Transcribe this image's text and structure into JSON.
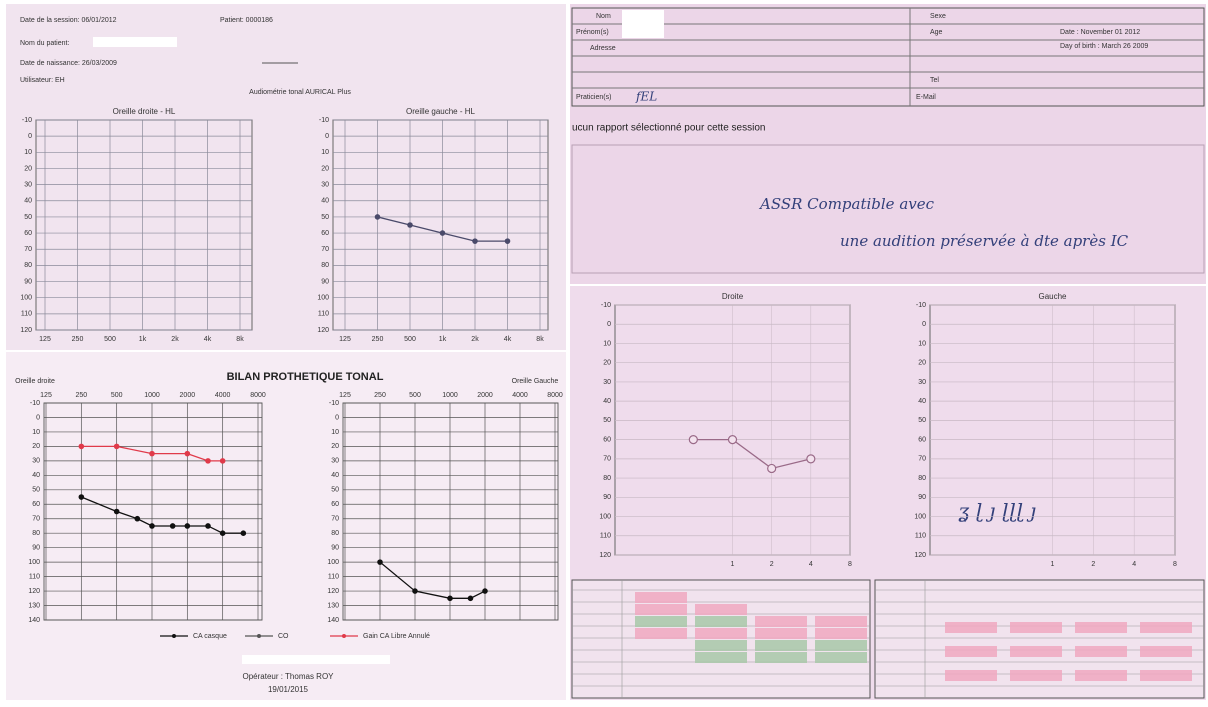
{
  "session_sheet": {
    "session_date": "Date de la session: 06/01/2012",
    "patient_id": "Patient: 0000186",
    "patient_name_label": "Nom du patient:",
    "birth_date": "Date de naissance: 26/03/2009",
    "user": "Utilisateur: EH",
    "title": "Audiométrie tonal AURICAL Plus",
    "charts": [
      {
        "title": "Oreille droite - HL",
        "ylim": [
          -10,
          120
        ],
        "yticks": [
          -10,
          0,
          10,
          20,
          30,
          40,
          50,
          60,
          70,
          80,
          90,
          100,
          110,
          120
        ],
        "xlim": [
          125,
          8000
        ],
        "xticks": [
          125,
          250,
          500,
          {
            "value": 1000,
            "label": "1k"
          },
          {
            "value": 2000,
            "label": "2k"
          },
          {
            "value": 4000,
            "label": "4k"
          },
          {
            "value": 8000,
            "label": "8k"
          }
        ]
      },
      {
        "title": "Oreille gauche - HL",
        "ylim": [
          -10,
          120
        ],
        "yticks": [
          -10,
          0,
          10,
          20,
          30,
          40,
          50,
          60,
          70,
          80,
          90,
          100,
          110,
          120
        ],
        "xlim": [
          125,
          8000
        ],
        "xticks": [
          125,
          250,
          500,
          {
            "value": 1000,
            "label": "1k"
          },
          {
            "value": 2000,
            "label": "2k"
          },
          {
            "value": 4000,
            "label": "4k"
          },
          {
            "value": 8000,
            "label": "8k"
          }
        ],
        "series": [
          {
            "color": "#4a4a6a",
            "x": [
              250,
              500,
              1000,
              2000,
              4000
            ],
            "values": [
              50,
              55,
              60,
              65,
              65
            ]
          }
        ]
      }
    ]
  },
  "bilan": {
    "title": "BILAN PROTHETIQUE TONAL",
    "right_ear_label": "Oreille droite",
    "left_ear_label": "Oreille Gauche",
    "charts": [
      {
        "ylim": [
          -10,
          140
        ],
        "yticks": [
          -10,
          0,
          10,
          20,
          30,
          40,
          50,
          60,
          70,
          80,
          90,
          100,
          110,
          120,
          130,
          140
        ],
        "xlim": [
          125,
          8000
        ],
        "xticks": [
          125,
          250,
          500,
          1000,
          2000,
          4000,
          8000
        ],
        "series": [
          {
            "color": "#e03a4a",
            "x": [
              250,
              500,
              1000,
              2000,
              3000,
              4000
            ],
            "values": [
              20,
              20,
              25,
              25,
              30,
              30
            ]
          },
          {
            "color": "#111111",
            "x": [
              250,
              500,
              750,
              1000,
              1500,
              2000,
              3000,
              4000,
              6000
            ],
            "values": [
              55,
              65,
              70,
              75,
              75,
              75,
              75,
              80,
              80
            ]
          }
        ]
      },
      {
        "ylim": [
          -10,
          140
        ],
        "yticks": [
          -10,
          0,
          10,
          20,
          30,
          40,
          50,
          60,
          70,
          80,
          90,
          100,
          110,
          120,
          130,
          140
        ],
        "xlim": [
          125,
          8000
        ],
        "xticks": [
          125,
          250,
          500,
          1000,
          2000,
          4000,
          8000
        ],
        "series": [
          {
            "color": "#111111",
            "x": [
              250,
              500,
              1000,
              1500,
              2000
            ],
            "values": [
              100,
              120,
              125,
              125,
              120
            ]
          }
        ]
      }
    ],
    "legend": [
      {
        "name": "CA casque",
        "color": "#111111"
      },
      {
        "name": "CO",
        "color": "#555555"
      },
      {
        "name": "Gain CA Libre Annulé",
        "color": "#e03a4a"
      }
    ],
    "operator_line": "Opérateur : Thomas ROY",
    "date": "19/01/2015"
  },
  "form": {
    "nom": "Nom",
    "prenom": "Prénom(s)",
    "adresse": "Adresse",
    "tel": "Tel",
    "email": "E-Mail",
    "praticien": "Praticien(s)",
    "praticien_value": "fEL",
    "sexe": "Sexe",
    "age": "Age",
    "date": "Date : November 01 2012",
    "birth": "Day of birth : March 26 2009"
  },
  "report": {
    "no_report": "ucun rapport sélectionné pour cette session",
    "handwritten_1": "ASSR    Compatible avec",
    "handwritten_2": "une audition préservée à dte après IC"
  },
  "assr": {
    "charts": [
      {
        "title": "Droite",
        "ylim": [
          -10,
          120
        ],
        "yticks": [
          -10,
          0,
          10,
          20,
          30,
          40,
          50,
          60,
          70,
          80,
          90,
          100,
          110,
          120
        ],
        "xlim": [
          0.125,
          8
        ],
        "xticks": [
          1,
          2,
          4,
          8
        ],
        "series": [
          {
            "color": "#9a6a88",
            "x": [
              0.5,
              1,
              2,
              4
            ],
            "values": [
              60,
              60,
              75,
              70
            ]
          }
        ]
      },
      {
        "title": "Gauche",
        "ylim": [
          -10,
          120
        ],
        "yticks": [
          -10,
          0,
          10,
          20,
          30,
          40,
          50,
          60,
          70,
          80,
          90,
          100,
          110,
          120
        ],
        "xlim": [
          0.125,
          8
        ],
        "xticks": [
          1,
          2,
          4,
          8
        ]
      }
    ]
  }
}
